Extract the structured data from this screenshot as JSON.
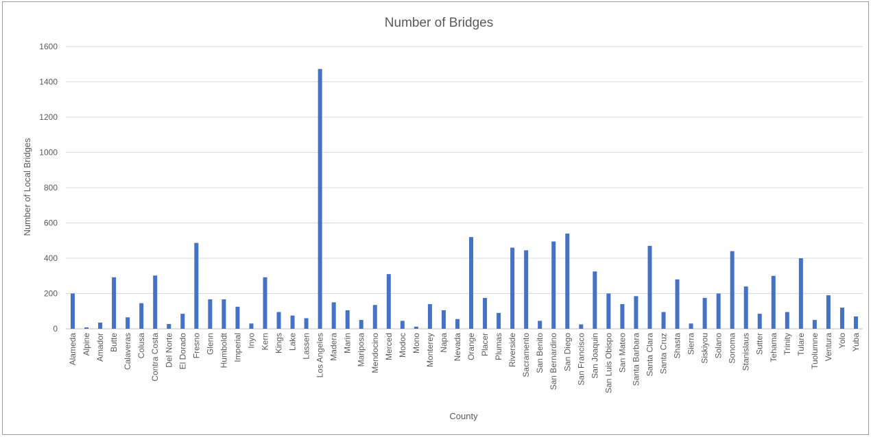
{
  "chart_data": {
    "type": "bar",
    "title": "Number of Bridges",
    "xlabel": "County",
    "ylabel": "Number of Local Bridges",
    "ylim": [
      0,
      1600
    ],
    "yticks": [
      0,
      200,
      400,
      600,
      800,
      1000,
      1200,
      1400,
      1600
    ],
    "grid": true,
    "legend": "none",
    "bar_color": "#4472c4",
    "categories": [
      "Alameda",
      "Alpine",
      "Amador",
      "Butte",
      "Calaveras",
      "Colusa",
      "Contra Costa",
      "Del Norte",
      "El Dorado",
      "Fresno",
      "Glenn",
      "Humboldt",
      "Imperial",
      "Inyo",
      "Kern",
      "Kings",
      "Lake",
      "Lassen",
      "Los Angeles",
      "Madera",
      "Marin",
      "Mariposa",
      "Mendocino",
      "Merced",
      "Modoc",
      "Mono",
      "Monterey",
      "Napa",
      "Nevada",
      "Orange",
      "Placer",
      "Plumas",
      "Riverside",
      "Sacramento",
      "San Benito",
      "San Bernardino",
      "San Diego",
      "San Francisco",
      "San Joaquin",
      "San Luis Obispo",
      "San Mateo",
      "Santa Barbara",
      "Santa Clara",
      "Santa Cruz",
      "Shasta",
      "Sierra",
      "Siskiyou",
      "Solano",
      "Sonoma",
      "Stanislaus",
      "Sutter",
      "Tehama",
      "Trinity",
      "Tulare",
      "Tuolumne",
      "Ventura",
      "Yolo",
      "Yuba"
    ],
    "values": [
      200,
      8,
      35,
      292,
      65,
      145,
      302,
      27,
      85,
      487,
      167,
      167,
      125,
      30,
      292,
      95,
      75,
      60,
      1473,
      150,
      105,
      50,
      135,
      310,
      45,
      12,
      140,
      105,
      55,
      520,
      175,
      90,
      460,
      445,
      45,
      495,
      540,
      25,
      325,
      200,
      140,
      185,
      470,
      95,
      280,
      30,
      175,
      200,
      440,
      240,
      85,
      300,
      95,
      400,
      50,
      190,
      120,
      70
    ]
  }
}
